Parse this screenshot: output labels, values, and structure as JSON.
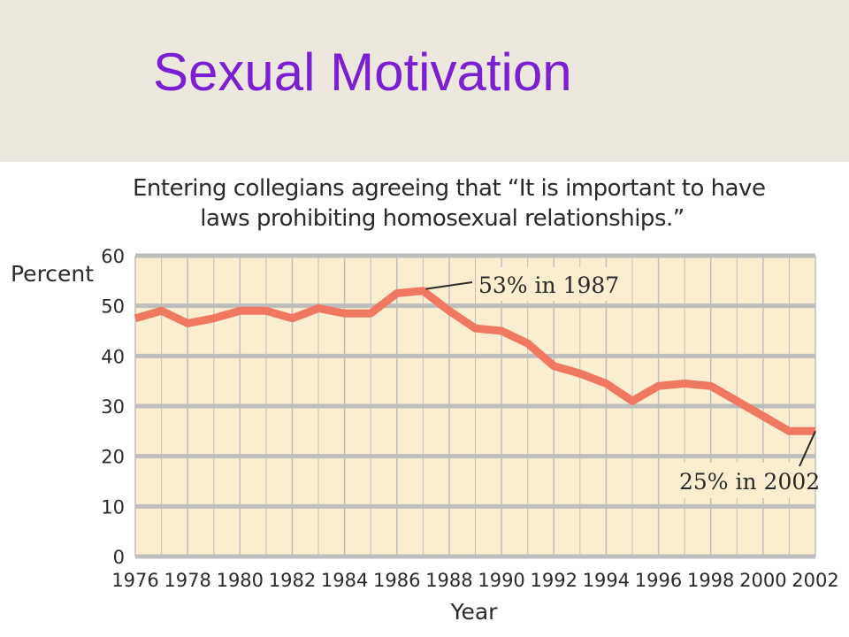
{
  "slide": {
    "title": "Sexual Motivation"
  },
  "colors": {
    "title": "#7a1fd1",
    "band": "#ece8dd",
    "plot_bg": "#fbeed0",
    "grid": "#bdbdbd",
    "line": "#f07860"
  },
  "chart_data": {
    "type": "line",
    "title_lines": [
      "Entering collegians agreeing that “It is important to have",
      "laws prohibiting homosexual relationships.”"
    ],
    "xlabel": "Year",
    "ylabel": "Percent",
    "xlim": [
      1976,
      2002
    ],
    "ylim": [
      0,
      60
    ],
    "x_ticks": [
      1976,
      1978,
      1980,
      1982,
      1984,
      1986,
      1988,
      1990,
      1992,
      1994,
      1996,
      1998,
      2000,
      2002
    ],
    "y_ticks": [
      0,
      10,
      20,
      30,
      40,
      50,
      60
    ],
    "grid": true,
    "series": [
      {
        "x": [
          1976,
          1977,
          1978,
          1979,
          1980,
          1981,
          1982,
          1983,
          1984,
          1985,
          1986,
          1987,
          1988,
          1989,
          1990,
          1991,
          1992,
          1993,
          1994,
          1995,
          1996,
          1997,
          1998,
          1999,
          2000,
          2001,
          2002
        ],
        "values": [
          47.5,
          49,
          46.5,
          47.5,
          49,
          49,
          47.5,
          49.5,
          48.5,
          48.5,
          52.5,
          53,
          49,
          45.5,
          45,
          42.5,
          38,
          36.5,
          34.5,
          31,
          34,
          34.5,
          34,
          31,
          28,
          25,
          25
        ]
      }
    ],
    "annotations": [
      {
        "text": "53% in 1987",
        "x": 1987,
        "y": 53
      },
      {
        "text": "25% in 2002",
        "x": 2002,
        "y": 25
      }
    ]
  }
}
